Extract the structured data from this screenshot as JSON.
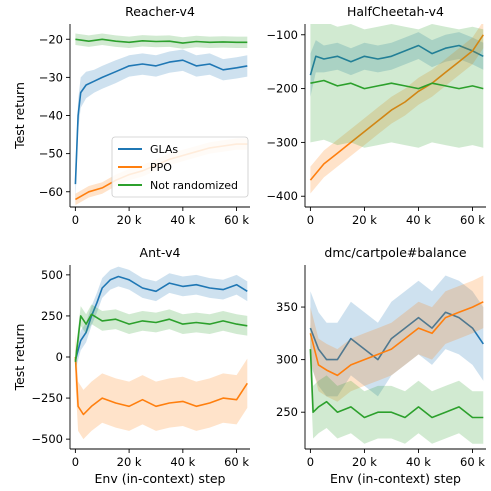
{
  "legend": {
    "entries": [
      {
        "label": "GLAs",
        "color": "#1f77b4"
      },
      {
        "label": "PPO",
        "color": "#ff7f0e"
      },
      {
        "label": "Not randomized",
        "color": "#2ca02c"
      }
    ]
  },
  "chart_data": [
    {
      "type": "line",
      "title": "Reacher-v4",
      "xlabel": "",
      "ylabel": "Test return",
      "xlim": [
        -2000,
        65000
      ],
      "ylim": [
        -64,
        -16
      ],
      "xticks": [
        {
          "v": 0,
          "label": "0"
        },
        {
          "v": 20000,
          "label": "20 k"
        },
        {
          "v": 40000,
          "label": "40 k"
        },
        {
          "v": 60000,
          "label": "60 k"
        }
      ],
      "yticks": [
        {
          "v": -60,
          "label": "−60"
        },
        {
          "v": -50,
          "label": "−50"
        },
        {
          "v": -40,
          "label": "−40"
        },
        {
          "v": -30,
          "label": "−30"
        },
        {
          "v": -20,
          "label": "−20"
        }
      ],
      "series": [
        {
          "name": "GLAs",
          "x": [
            0,
            1000,
            2000,
            4000,
            7000,
            10000,
            15000,
            20000,
            25000,
            30000,
            35000,
            40000,
            45000,
            50000,
            55000,
            60000,
            64000
          ],
          "y": [
            -58,
            -40,
            -34,
            -32,
            -31,
            -30,
            -28.5,
            -27,
            -26.5,
            -27,
            -26,
            -25.5,
            -27,
            -26.5,
            -28,
            -27.5,
            -27
          ],
          "band": [
            5,
            4,
            4,
            3.5,
            3,
            3,
            3,
            2.8,
            2.8,
            2.8,
            2.8,
            2.8,
            2.8,
            2.8,
            2.8,
            2.8,
            2.8
          ]
        },
        {
          "name": "PPO",
          "x": [
            0,
            5000,
            10000,
            15000,
            20000,
            25000,
            30000,
            35000,
            40000,
            45000,
            50000,
            55000,
            60000,
            64000
          ],
          "y": [
            -62,
            -60,
            -59,
            -57,
            -55.5,
            -54.5,
            -53,
            -51.5,
            -50.5,
            -49.5,
            -48.5,
            -48,
            -47.5,
            -47.5
          ],
          "band": [
            1.5,
            1.5,
            1.5,
            1.5,
            1.5,
            1.5,
            1.5,
            1.5,
            1.5,
            1.5,
            1.5,
            1.5,
            1.5,
            1.5
          ]
        },
        {
          "name": "Not randomized",
          "x": [
            0,
            5000,
            10000,
            15000,
            20000,
            25000,
            30000,
            35000,
            40000,
            45000,
            50000,
            55000,
            60000,
            64000
          ],
          "y": [
            -20,
            -20.5,
            -20,
            -20.5,
            -20.8,
            -20.4,
            -20.6,
            -20.5,
            -21,
            -20.6,
            -20.8,
            -20.7,
            -20.8,
            -20.8
          ],
          "band": [
            1.5,
            1.5,
            1.5,
            1.5,
            1.5,
            1.5,
            1.5,
            1.5,
            1.5,
            1.5,
            1.5,
            1.5,
            1.5,
            1.5
          ]
        }
      ]
    },
    {
      "type": "line",
      "title": "HalfCheetah-v4",
      "xlabel": "",
      "ylabel": "",
      "xlim": [
        -2000,
        65000
      ],
      "ylim": [
        -420,
        -80
      ],
      "xticks": [
        {
          "v": 0,
          "label": "0"
        },
        {
          "v": 20000,
          "label": "20 k"
        },
        {
          "v": 40000,
          "label": "40 k"
        },
        {
          "v": 60000,
          "label": "60 k"
        }
      ],
      "yticks": [
        {
          "v": -400,
          "label": "−400"
        },
        {
          "v": -300,
          "label": "−300"
        },
        {
          "v": -200,
          "label": "−200"
        },
        {
          "v": -100,
          "label": "−100"
        }
      ],
      "series": [
        {
          "name": "GLAs",
          "x": [
            0,
            2000,
            5000,
            10000,
            15000,
            20000,
            25000,
            30000,
            35000,
            40000,
            45000,
            50000,
            55000,
            60000,
            64000
          ],
          "y": [
            -175,
            -140,
            -145,
            -140,
            -150,
            -140,
            -145,
            -140,
            -130,
            -120,
            -135,
            -125,
            -120,
            -130,
            -140
          ],
          "band": [
            40,
            30,
            25,
            25,
            25,
            25,
            25,
            25,
            25,
            25,
            25,
            25,
            25,
            25,
            25
          ]
        },
        {
          "name": "PPO",
          "x": [
            0,
            5000,
            10000,
            15000,
            20000,
            25000,
            30000,
            35000,
            40000,
            45000,
            50000,
            55000,
            60000,
            64000
          ],
          "y": [
            -370,
            -340,
            -320,
            -300,
            -280,
            -260,
            -240,
            -225,
            -205,
            -190,
            -170,
            -150,
            -130,
            -100
          ],
          "band": [
            25,
            25,
            25,
            25,
            25,
            25,
            25,
            25,
            25,
            25,
            25,
            25,
            25,
            25
          ]
        },
        {
          "name": "Not randomized",
          "x": [
            0,
            5000,
            10000,
            15000,
            20000,
            25000,
            30000,
            35000,
            40000,
            45000,
            50000,
            55000,
            60000,
            64000
          ],
          "y": [
            -190,
            -185,
            -195,
            -190,
            -200,
            -195,
            -190,
            -195,
            -200,
            -190,
            -195,
            -200,
            -195,
            -200
          ],
          "band": [
            110,
            110,
            110,
            110,
            110,
            110,
            110,
            110,
            110,
            110,
            110,
            110,
            110,
            110
          ]
        }
      ]
    },
    {
      "type": "line",
      "title": "Ant-v4",
      "xlabel": "Env (in-context) step",
      "ylabel": "Test return",
      "xlim": [
        -2000,
        65000
      ],
      "ylim": [
        -560,
        560
      ],
      "xticks": [
        {
          "v": 0,
          "label": "0"
        },
        {
          "v": 20000,
          "label": "20 k"
        },
        {
          "v": 40000,
          "label": "40 k"
        },
        {
          "v": 60000,
          "label": "60 k"
        }
      ],
      "yticks": [
        {
          "v": -500,
          "label": "−500"
        },
        {
          "v": -250,
          "label": "−250"
        },
        {
          "v": 0,
          "label": "0"
        },
        {
          "v": 250,
          "label": "250"
        },
        {
          "v": 500,
          "label": "500"
        }
      ],
      "series": [
        {
          "name": "GLAs",
          "x": [
            0,
            2000,
            4000,
            6000,
            8000,
            10000,
            13000,
            16000,
            20000,
            25000,
            30000,
            35000,
            40000,
            45000,
            50000,
            55000,
            60000,
            64000
          ],
          "y": [
            -20,
            100,
            150,
            250,
            330,
            420,
            470,
            490,
            470,
            420,
            400,
            450,
            430,
            440,
            420,
            410,
            440,
            400
          ],
          "band": [
            60,
            60,
            60,
            60,
            60,
            60,
            60,
            60,
            60,
            60,
            60,
            60,
            60,
            60,
            60,
            60,
            60,
            60
          ]
        },
        {
          "name": "PPO",
          "x": [
            0,
            1000,
            3000,
            6000,
            10000,
            15000,
            20000,
            25000,
            30000,
            35000,
            40000,
            45000,
            50000,
            55000,
            60000,
            64000
          ],
          "y": [
            0,
            -300,
            -350,
            -300,
            -250,
            -280,
            -300,
            -260,
            -300,
            -280,
            -270,
            -300,
            -280,
            -250,
            -260,
            -160
          ],
          "band": [
            150,
            150,
            150,
            150,
            150,
            150,
            150,
            150,
            150,
            150,
            150,
            150,
            150,
            150,
            150,
            150
          ]
        },
        {
          "name": "Not randomized",
          "x": [
            0,
            2000,
            4000,
            6000,
            10000,
            15000,
            20000,
            25000,
            30000,
            35000,
            40000,
            45000,
            50000,
            55000,
            60000,
            64000
          ],
          "y": [
            -30,
            250,
            200,
            260,
            220,
            230,
            200,
            220,
            210,
            230,
            200,
            210,
            200,
            220,
            200,
            190
          ],
          "band": [
            60,
            60,
            60,
            60,
            60,
            60,
            60,
            60,
            60,
            60,
            60,
            60,
            60,
            60,
            60,
            60
          ]
        }
      ]
    },
    {
      "type": "line",
      "title": "dmc/cartpole#balance",
      "xlabel": "Env (in-context) step",
      "ylabel": "",
      "xlim": [
        -2000,
        65000
      ],
      "ylim": [
        215,
        390
      ],
      "xticks": [
        {
          "v": 0,
          "label": "0"
        },
        {
          "v": 20000,
          "label": "20 k"
        },
        {
          "v": 40000,
          "label": "40 k"
        },
        {
          "v": 60000,
          "label": "60 k"
        }
      ],
      "yticks": [
        {
          "v": 250,
          "label": "250"
        },
        {
          "v": 300,
          "label": "300"
        },
        {
          "v": 350,
          "label": "350"
        }
      ],
      "series": [
        {
          "name": "GLAs",
          "x": [
            0,
            3000,
            6000,
            10000,
            15000,
            20000,
            25000,
            30000,
            35000,
            40000,
            45000,
            50000,
            55000,
            60000,
            64000
          ],
          "y": [
            330,
            310,
            300,
            300,
            320,
            310,
            300,
            320,
            330,
            340,
            330,
            345,
            340,
            330,
            315
          ],
          "band": [
            35,
            35,
            35,
            35,
            35,
            35,
            35,
            35,
            35,
            35,
            35,
            35,
            35,
            35,
            35
          ]
        },
        {
          "name": "PPO",
          "x": [
            0,
            3000,
            6000,
            10000,
            15000,
            20000,
            25000,
            30000,
            35000,
            40000,
            45000,
            50000,
            55000,
            60000,
            64000
          ],
          "y": [
            325,
            295,
            290,
            285,
            295,
            300,
            305,
            310,
            320,
            330,
            325,
            340,
            345,
            350,
            355
          ],
          "band": [
            25,
            25,
            25,
            25,
            25,
            25,
            25,
            25,
            25,
            25,
            25,
            25,
            25,
            25,
            25
          ]
        },
        {
          "name": "Not randomized",
          "x": [
            0,
            1000,
            3000,
            6000,
            10000,
            15000,
            20000,
            25000,
            30000,
            35000,
            40000,
            45000,
            50000,
            55000,
            60000,
            64000
          ],
          "y": [
            310,
            250,
            255,
            260,
            250,
            255,
            245,
            250,
            250,
            245,
            255,
            245,
            250,
            255,
            245,
            245
          ],
          "band": [
            25,
            25,
            25,
            25,
            25,
            25,
            25,
            25,
            25,
            25,
            25,
            25,
            25,
            25,
            25,
            25
          ]
        }
      ]
    }
  ]
}
